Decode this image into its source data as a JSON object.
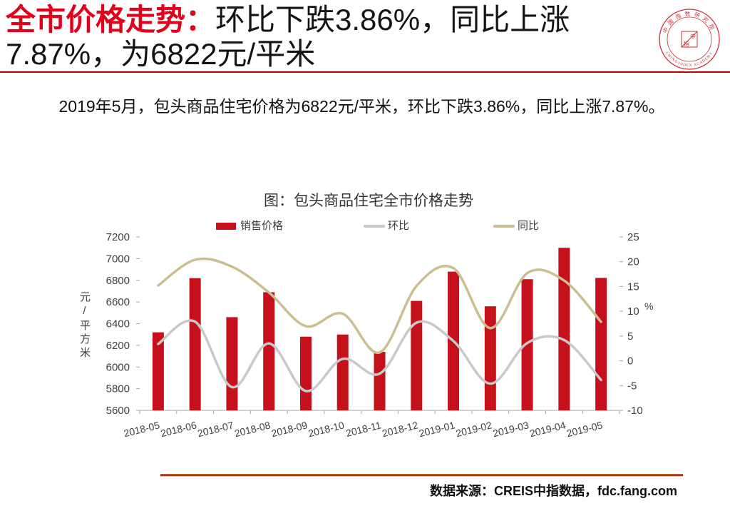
{
  "title": {
    "highlight": "全市价格走势：",
    "line1": "环比下跌3.86%，同比上涨",
    "line2": "7.87%，为6822元/平米"
  },
  "logo": {
    "name_cn": "中国指数研究院",
    "name_en": "CHINA INDEX ACADEMY",
    "center_top": "中",
    "center_bottom": "指"
  },
  "summary": "2019年5月，包头商品住宅价格为6822元/平米，环比下跌3.86%，同比上涨7.87%。",
  "colors": {
    "title_highlight": "#e3001b",
    "title_rule": "#c00000",
    "axis": "#a6a6a6",
    "logo": "#c8323a"
  },
  "chart_data": {
    "type": "bar",
    "title": "图：包头商品住宅全市价格走势",
    "categories": [
      "2018-05",
      "2018-06",
      "2018-07",
      "2018-08",
      "2018-09",
      "2018-10",
      "2018-11",
      "2018-12",
      "2019-01",
      "2019-02",
      "2019-03",
      "2019-04",
      "2019-05"
    ],
    "series": [
      {
        "name": "销售价格",
        "type": "bar",
        "axis": "left",
        "color": "#c4111b",
        "values": [
          6320,
          6820,
          6460,
          6690,
          6280,
          6300,
          6140,
          6610,
          6880,
          6560,
          6810,
          7100,
          6822
        ]
      },
      {
        "name": "环比",
        "type": "line",
        "axis": "right",
        "color": "#c9c9c9",
        "values": [
          3.4,
          7.9,
          -5.3,
          3.5,
          -6.1,
          0.4,
          -2.6,
          7.7,
          4.0,
          -4.6,
          3.6,
          4.2,
          -3.86
        ]
      },
      {
        "name": "同比",
        "type": "line",
        "axis": "right",
        "color": "#cbbf92",
        "values": [
          15.2,
          20.4,
          19.0,
          13.8,
          7.0,
          9.5,
          1.7,
          15.1,
          18.7,
          6.6,
          17.7,
          16.2,
          7.87
        ]
      }
    ],
    "ylabel": "元/平方米",
    "y2label": "%",
    "ylim": [
      5600,
      7200
    ],
    "ystep": 200,
    "y2lim": [
      -10,
      25
    ],
    "y2step": 5,
    "legend": "top",
    "grid": false
  },
  "source": "数据来源：CREIS中指数据，fdc.fang.com"
}
